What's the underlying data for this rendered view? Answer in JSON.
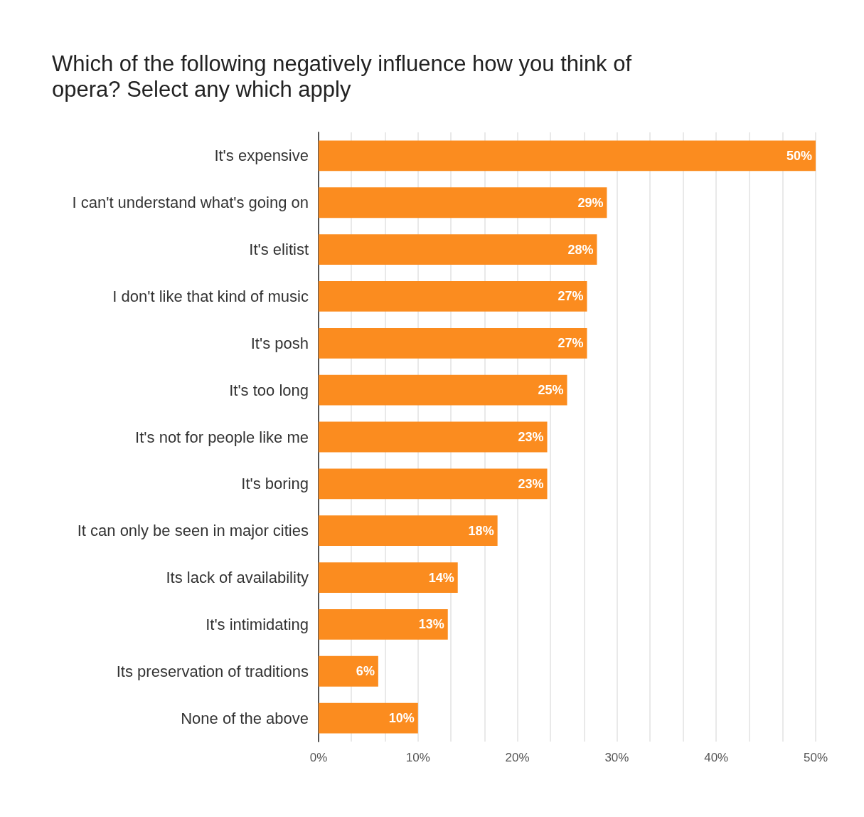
{
  "chart_data": {
    "type": "bar",
    "orientation": "horizontal",
    "title": "Which of the following negatively influence how you think of opera? Select any which apply",
    "categories": [
      "It's expensive",
      "I can't understand what's going on",
      "It's elitist",
      "I don't like that kind of music",
      "It's posh",
      "It's too long",
      "It's not for people like me",
      "It's boring",
      "It can only be seen in major cities",
      "Its lack of availability",
      "It's intimidating",
      "Its preservation of traditions",
      "None of the above"
    ],
    "values": [
      50,
      29,
      28,
      27,
      27,
      25,
      23,
      23,
      18,
      14,
      13,
      6,
      10
    ],
    "value_labels": [
      "50%",
      "29%",
      "28%",
      "27%",
      "27%",
      "25%",
      "23%",
      "23%",
      "18%",
      "14%",
      "13%",
      "6%",
      "10%"
    ],
    "color": "#fb8c1f",
    "xlim": [
      0,
      50
    ],
    "xticks": [
      {
        "value": 0,
        "label": "0%"
      },
      {
        "value": 3.3,
        "label": null
      },
      {
        "value": 6.7,
        "label": null
      },
      {
        "value": 10,
        "label": "10%"
      },
      {
        "value": 13.3,
        "label": null
      },
      {
        "value": 16.7,
        "label": null
      },
      {
        "value": 20,
        "label": "20%"
      },
      {
        "value": 23.3,
        "label": null
      },
      {
        "value": 26.7,
        "label": null
      },
      {
        "value": 30,
        "label": "30%"
      },
      {
        "value": 33.3,
        "label": null
      },
      {
        "value": 36.7,
        "label": null
      },
      {
        "value": 40,
        "label": "40%"
      },
      {
        "value": 43.3,
        "label": null
      },
      {
        "value": 46.7,
        "label": null
      },
      {
        "value": 50,
        "label": "50%"
      }
    ],
    "grid": "x"
  }
}
